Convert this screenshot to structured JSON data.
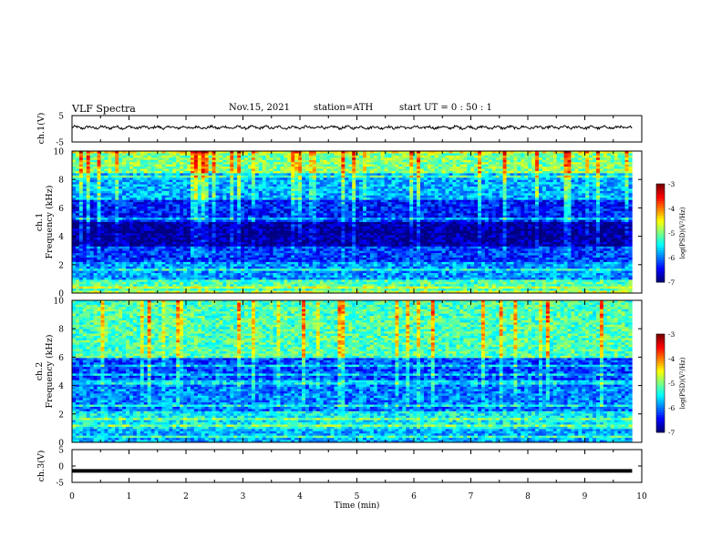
{
  "header": {
    "title": "VLF  Spectra",
    "date": "Nov.15, 2021",
    "station": "station=ATH",
    "start": "start  UT  =   0  : 50 : 1"
  },
  "chart_data": [
    {
      "type": "line",
      "panel": "ch1-waveform",
      "ylabel": "ch.1(V)",
      "ylim": [
        -5,
        5
      ],
      "yticks": [
        "5",
        "-5"
      ],
      "x_range_min": [
        0,
        9.83
      ],
      "approx_level_v": 0.5,
      "color": "#000000"
    },
    {
      "type": "heatmap",
      "panel": "ch1-spectrogram",
      "ylabel_lines": [
        "ch.1",
        "Frequency  (kHz)"
      ],
      "ylim": [
        0,
        10
      ],
      "yticks": [
        "0",
        "2",
        "4",
        "6",
        "8",
        "10"
      ],
      "x_range_min": [
        0,
        9.83
      ],
      "colorbar": {
        "label": "log(PSD)(V²/Hz)",
        "ticks": [
          "-3",
          "-4",
          "-5",
          "-6",
          "-7"
        ],
        "range": [
          -7,
          -3
        ]
      },
      "bands_log_psd": [
        {
          "f_khz": [
            8.5,
            10
          ],
          "value": -5.0
        },
        {
          "f_khz": [
            6.6,
            8.5
          ],
          "value": -5.8
        },
        {
          "f_khz": [
            5.0,
            6.6
          ],
          "value": -6.4
        },
        {
          "f_khz": [
            3.3,
            5.0
          ],
          "value": -6.9
        },
        {
          "f_khz": [
            2.2,
            3.3
          ],
          "value": -6.3
        },
        {
          "f_khz": [
            0.9,
            2.2
          ],
          "value": -5.9
        },
        {
          "f_khz": [
            0,
            0.9
          ],
          "value": -5.2
        }
      ]
    },
    {
      "type": "heatmap",
      "panel": "ch2-spectrogram",
      "ylabel_lines": [
        "ch.2",
        "Frequency  (kHz)"
      ],
      "ylim": [
        0,
        10
      ],
      "yticks": [
        "0",
        "2",
        "4",
        "6",
        "8",
        "10"
      ],
      "x_range_min": [
        0,
        9.83
      ],
      "colorbar": {
        "label": "log(PSD)(V²/Hz)",
        "ticks": [
          "-3",
          "-4",
          "-5",
          "-6",
          "-7"
        ],
        "range": [
          -7,
          -3
        ]
      },
      "bands_log_psd": [
        {
          "f_khz": [
            6.0,
            10
          ],
          "value": -5.2
        },
        {
          "f_khz": [
            4.2,
            6.0
          ],
          "value": -6.2
        },
        {
          "f_khz": [
            2.2,
            4.2
          ],
          "value": -6.0
        },
        {
          "f_khz": [
            1.0,
            2.2
          ],
          "value": -5.5
        },
        {
          "f_khz": [
            0,
            1.0
          ],
          "value": -5.8
        }
      ]
    },
    {
      "type": "line",
      "panel": "ch3-waveform",
      "ylabel": "ch.3(V)",
      "ylim": [
        -5,
        5
      ],
      "yticks": [
        "5",
        "0",
        "-5"
      ],
      "x_range_min": [
        0,
        9.83
      ],
      "approx_level_v": -1.5,
      "color": "#000000",
      "xlabel": "Time  (min)",
      "xlim": [
        0,
        10
      ],
      "xticks": [
        "0",
        "1",
        "2",
        "3",
        "4",
        "5",
        "6",
        "7",
        "8",
        "9",
        "10"
      ]
    }
  ]
}
